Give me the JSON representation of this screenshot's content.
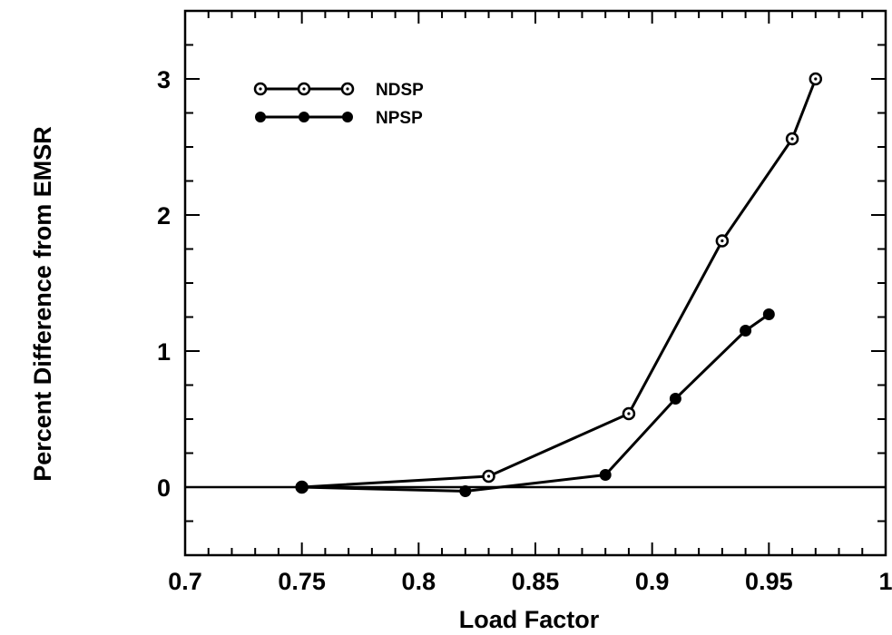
{
  "chart_data": {
    "type": "line",
    "title": "",
    "xlabel": "Load Factor",
    "ylabel": "Percent Difference from EMSR",
    "xlim": [
      0.7,
      1.0
    ],
    "ylim": [
      -0.5,
      3.5
    ],
    "x_ticks": [
      0.7,
      0.75,
      0.8,
      0.85,
      0.9,
      0.95,
      1.0
    ],
    "x_tick_labels": [
      "0.7",
      "0.75",
      "0.8",
      "0.85",
      "0.9",
      "0.95",
      "1"
    ],
    "y_ticks": [
      0,
      1,
      2,
      3
    ],
    "y_tick_labels": [
      "0",
      "1",
      "2",
      "3"
    ],
    "grid": false,
    "reference_line_y": 0,
    "legend_position": "top-left",
    "series": [
      {
        "name": "NDSP",
        "marker": "open-circle",
        "color": "#000000",
        "x": [
          0.75,
          0.83,
          0.89,
          0.93,
          0.96,
          0.97
        ],
        "y": [
          0.0,
          0.08,
          0.54,
          1.81,
          2.56,
          3.0
        ]
      },
      {
        "name": "NPSP",
        "marker": "filled-circle",
        "color": "#000000",
        "x": [
          0.75,
          0.82,
          0.88,
          0.91,
          0.94,
          0.95
        ],
        "y": [
          0.0,
          -0.03,
          0.09,
          0.65,
          1.15,
          1.27
        ]
      }
    ]
  }
}
